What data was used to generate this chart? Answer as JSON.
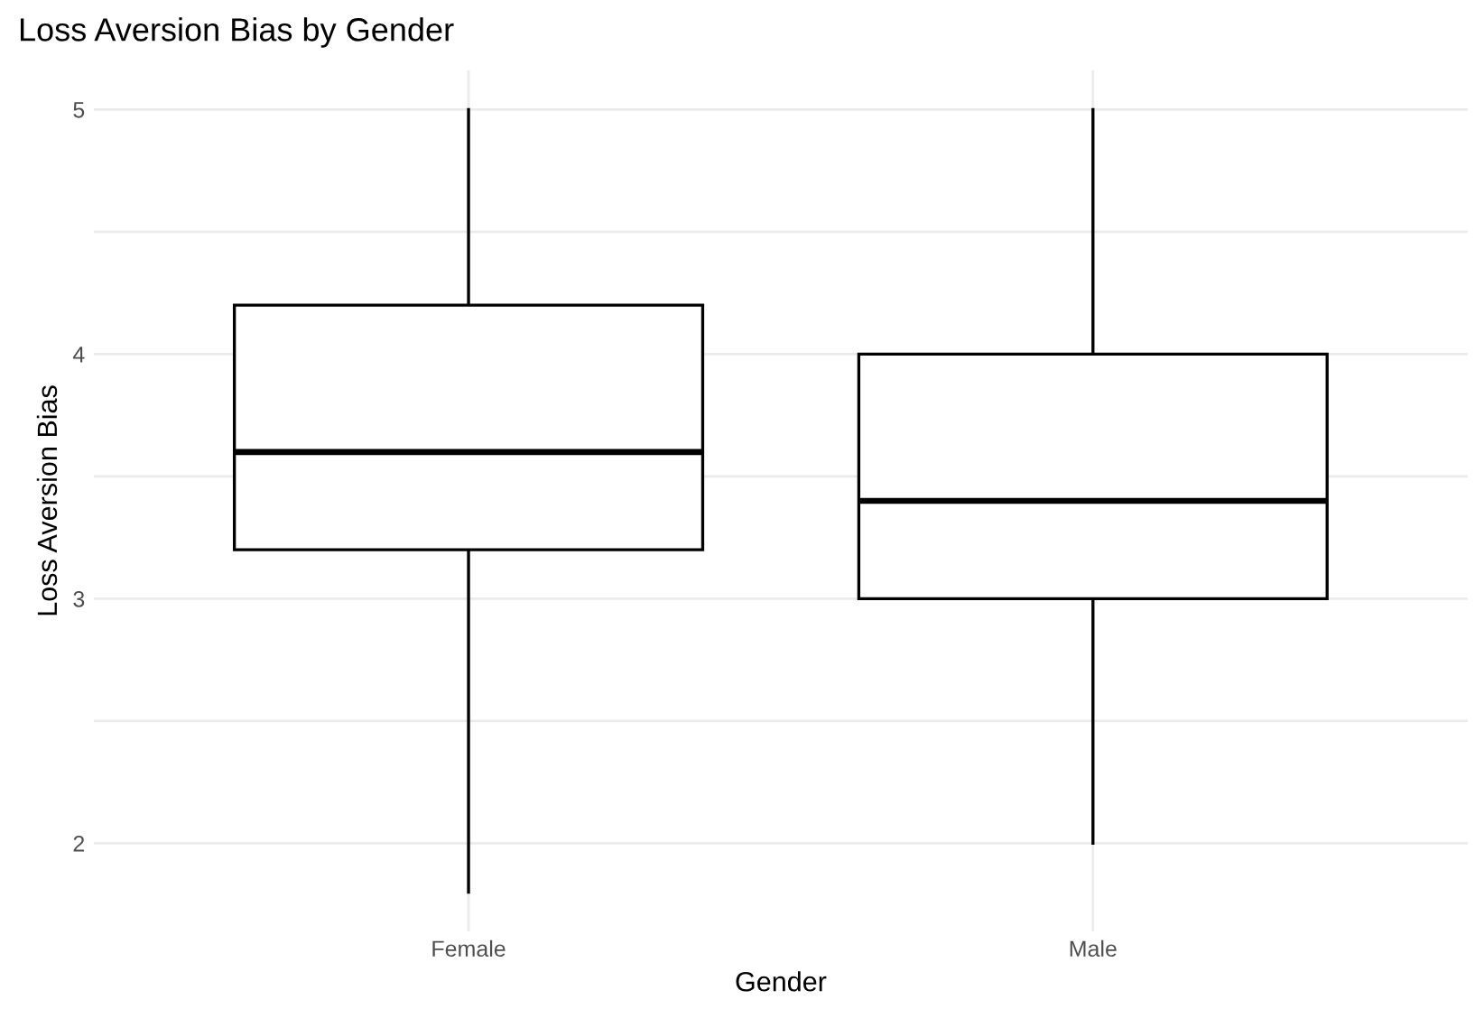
{
  "chart_data": {
    "type": "box",
    "title": "Loss Aversion Bias by Gender",
    "xlabel": "Gender",
    "ylabel": "Loss Aversion Bias",
    "categories": [
      "Female",
      "Male"
    ],
    "boxes": [
      {
        "low": 1.8,
        "q1": 3.2,
        "median": 3.6,
        "q3": 4.2,
        "high": 5
      },
      {
        "low": 2,
        "q1": 3,
        "median": 3.4,
        "q3": 4,
        "high": 5
      }
    ],
    "ylim": [
      1.64,
      5.16
    ],
    "yticks": [
      2,
      {
        "value": 2.5,
        "label": null
      },
      3,
      {
        "value": 3.5,
        "label": null
      },
      4,
      {
        "value": 4.5,
        "label": null
      },
      5
    ],
    "grid": true
  }
}
